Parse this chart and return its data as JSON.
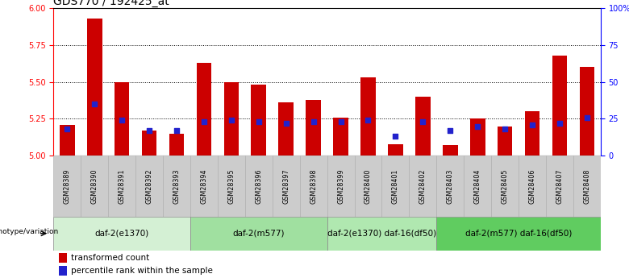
{
  "title": "GDS770 / 192425_at",
  "samples": [
    "GSM28389",
    "GSM28390",
    "GSM28391",
    "GSM28392",
    "GSM28393",
    "GSM28394",
    "GSM28395",
    "GSM28396",
    "GSM28397",
    "GSM28398",
    "GSM28399",
    "GSM28400",
    "GSM28401",
    "GSM28402",
    "GSM28403",
    "GSM28404",
    "GSM28405",
    "GSM28406",
    "GSM28407",
    "GSM28408"
  ],
  "bar_values": [
    5.21,
    5.93,
    5.5,
    5.17,
    5.15,
    5.63,
    5.5,
    5.48,
    5.36,
    5.38,
    5.26,
    5.53,
    5.08,
    5.4,
    5.07,
    5.25,
    5.2,
    5.3,
    5.68,
    5.6
  ],
  "percentile_values": [
    18,
    35,
    24,
    17,
    17,
    23,
    24,
    23,
    22,
    23,
    23,
    24,
    13,
    23,
    17,
    20,
    18,
    21,
    22,
    26
  ],
  "ylim_left": [
    5.0,
    6.0
  ],
  "ylim_right": [
    0,
    100
  ],
  "yticks_left": [
    5.0,
    5.25,
    5.5,
    5.75,
    6.0
  ],
  "yticks_right": [
    0,
    25,
    50,
    75,
    100
  ],
  "ytick_labels_right": [
    "0",
    "25",
    "50",
    "75",
    "100%"
  ],
  "bar_color": "#cc0000",
  "dot_color": "#2222cc",
  "baseline": 5.0,
  "groups": [
    {
      "label": "daf-2(e1370)",
      "start": 0,
      "end": 4,
      "color": "#d4f0d4"
    },
    {
      "label": "daf-2(m577)",
      "start": 5,
      "end": 9,
      "color": "#a0e0a0"
    },
    {
      "label": "daf-2(e1370) daf-16(df50)",
      "start": 10,
      "end": 13,
      "color": "#b0e8b0"
    },
    {
      "label": "daf-2(m577) daf-16(df50)",
      "start": 14,
      "end": 19,
      "color": "#60cc60"
    }
  ],
  "legend_bar_label": "transformed count",
  "legend_dot_label": "percentile rank within the sample",
  "genotype_label": "genotype/variation",
  "title_fontsize": 10,
  "tick_fontsize": 7,
  "group_fontsize": 7.5,
  "sample_fontsize": 5.8,
  "legend_fontsize": 7.5
}
